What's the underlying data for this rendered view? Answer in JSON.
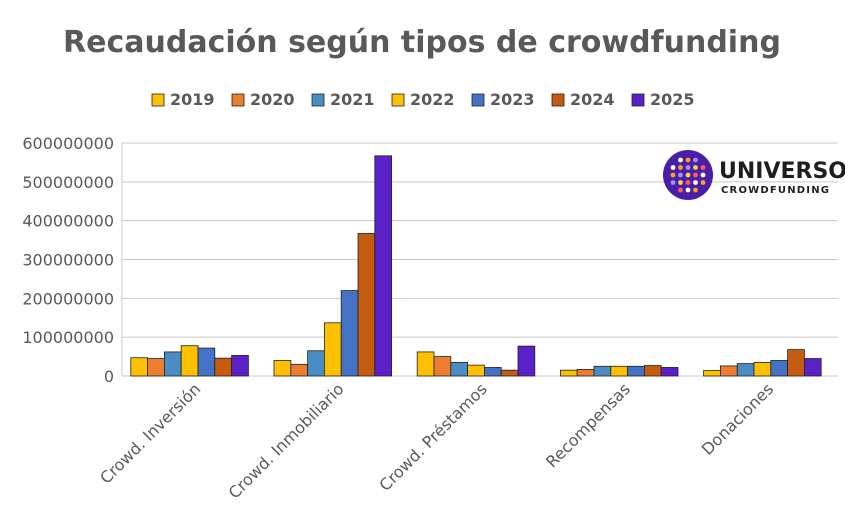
{
  "chart_data": {
    "type": "bar",
    "title": "Recaudación según tipos de crowdfunding",
    "xlabel": "",
    "ylabel": "",
    "ylim": [
      0,
      600000000
    ],
    "yticks": [
      "0",
      "100000000",
      "200000000",
      "300000000",
      "400000000",
      "500000000",
      "600000000"
    ],
    "grid": true,
    "legend_position": "top",
    "categories": [
      "Crowd. Inversión",
      "Crowd. Inmobiliario",
      "Crowd. Préstamos",
      "Recompensas",
      "Donaciones"
    ],
    "series": [
      {
        "name": "2019",
        "color": "#FFC000",
        "values": [
          47000000,
          40000000,
          62000000,
          15000000,
          14000000
        ]
      },
      {
        "name": "2020",
        "color": "#ED7D31",
        "values": [
          45000000,
          30000000,
          50000000,
          17000000,
          26000000
        ]
      },
      {
        "name": "2021",
        "color": "#4A8DC4",
        "values": [
          62000000,
          65000000,
          35000000,
          25000000,
          32000000
        ]
      },
      {
        "name": "2022",
        "color": "#FFC000",
        "values": [
          78000000,
          137000000,
          28000000,
          25000000,
          35000000
        ]
      },
      {
        "name": "2023",
        "color": "#4472C4",
        "values": [
          72000000,
          220000000,
          22000000,
          25000000,
          40000000
        ]
      },
      {
        "name": "2024",
        "color": "#C55A11",
        "values": [
          46000000,
          367000000,
          15000000,
          27000000,
          68000000
        ]
      },
      {
        "name": "2025",
        "color": "#5B21C9",
        "values": [
          53000000,
          567000000,
          77000000,
          22000000,
          45000000
        ]
      }
    ]
  },
  "logo": {
    "name": "UNIVERSO",
    "sub": "CROWDFUNDING",
    "circle_color": "#4A1FA8"
  }
}
